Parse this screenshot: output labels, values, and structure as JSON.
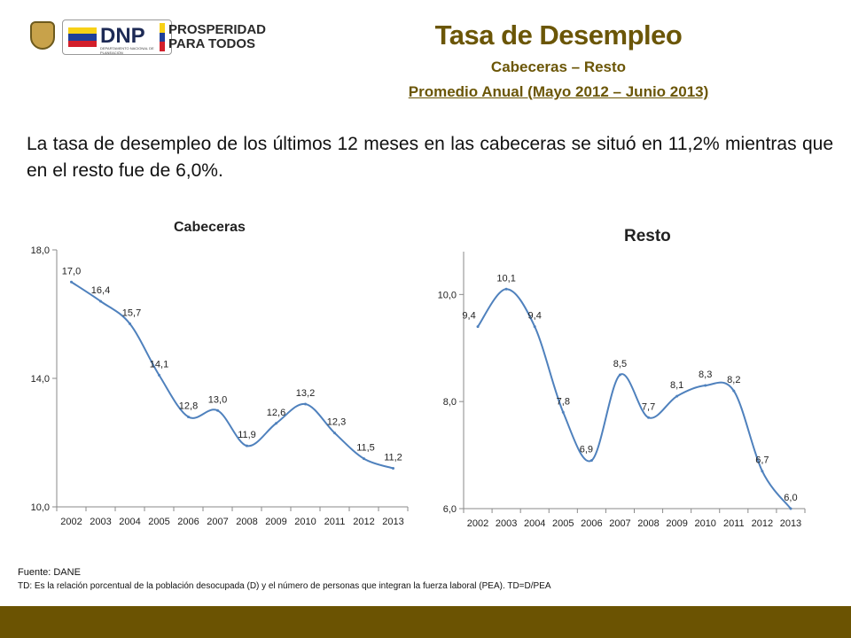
{
  "header": {
    "title": "Tasa de Desempleo",
    "subtitle1": "Cabeceras – Resto",
    "subtitle2": "Promedio Anual (Mayo 2012 – Junio 2013)"
  },
  "logos": {
    "dnp": "DNP",
    "dnp_sub": "DEPARTAMENTO NACIONAL DE PLANEACIÓN",
    "prosperidad_1": "PROSPERIDAD",
    "prosperidad_2": "PARA TODOS"
  },
  "summary": "La tasa de desempleo de los últimos 12 meses en las cabeceras se situó en 11,2% mientras que en el resto fue de 6,0%.",
  "chart_data": [
    {
      "type": "line",
      "title": "Cabeceras",
      "x": [
        "2002",
        "2003",
        "2004",
        "2005",
        "2006",
        "2007",
        "2008",
        "2009",
        "2010",
        "2011",
        "2012",
        "2013"
      ],
      "values": [
        17.0,
        16.4,
        15.7,
        14.1,
        12.8,
        13.0,
        11.9,
        12.6,
        13.2,
        12.3,
        11.5,
        11.2
      ],
      "labels": [
        "17,0",
        "16,4",
        "15,7",
        "14,1",
        "12,8",
        "13,0",
        "11,9",
        "12,6",
        "13,2",
        "12,3",
        "11,5",
        "11,2"
      ],
      "yticks": [
        "10,0",
        "14,0",
        "18,0"
      ],
      "ytick_values": [
        10,
        14,
        18
      ],
      "ylim": [
        10,
        18
      ],
      "color": "#4f81bd"
    },
    {
      "type": "line",
      "title": "Resto",
      "x": [
        "2002",
        "2003",
        "2004",
        "2005",
        "2006",
        "2007",
        "2008",
        "2009",
        "2010",
        "2011",
        "2012",
        "2013"
      ],
      "values": [
        9.4,
        10.1,
        9.4,
        7.8,
        6.9,
        8.5,
        7.7,
        8.1,
        8.3,
        8.2,
        6.7,
        6.0
      ],
      "labels": [
        "9,4",
        "10,1",
        "9,4",
        "7,8",
        "6,9",
        "8,5",
        "7,7",
        "8,1",
        "8,3",
        "8,2",
        "6,7",
        "6,0"
      ],
      "yticks": [
        "6,0",
        "8,0",
        "10,0"
      ],
      "ytick_values": [
        6,
        8,
        10
      ],
      "ylim": [
        6,
        10.8
      ],
      "color": "#4f81bd"
    }
  ],
  "footer": {
    "source": "Fuente: DANE",
    "definition": "TD:  Es la relación porcentual de la población desocupada (D) y el número de personas que integran la fuerza laboral (PEA). TD=D/PEA"
  }
}
